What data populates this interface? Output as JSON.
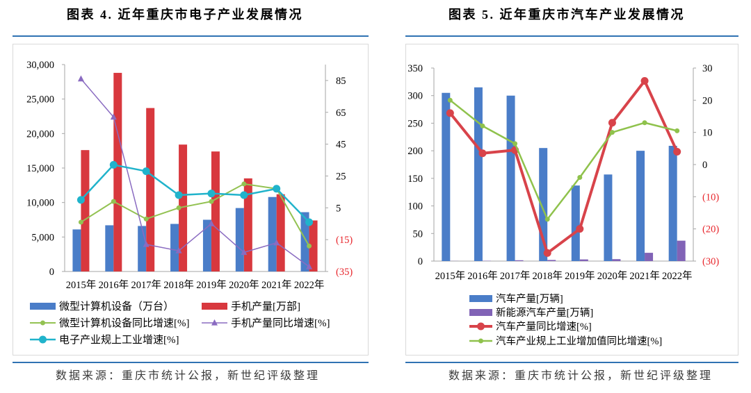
{
  "colors": {
    "rule": "#2f72b3",
    "axis": "#a6a6a6",
    "frame": "#d9d9d9"
  },
  "chart_data": [
    {
      "type": "bar+line",
      "title": "图表 4. 近年重庆市电子产业发展情况",
      "source": "数据来源：重庆市统计公报，新世纪评级整理",
      "categories": [
        "2015年",
        "2016年",
        "2017年",
        "2018年",
        "2019年",
        "2020年",
        "2021年",
        "2022年"
      ],
      "y_left": {
        "lim": [
          0,
          30000
        ],
        "ticks": [
          0,
          5000,
          10000,
          15000,
          20000,
          25000,
          30000
        ],
        "tick_labels": [
          "0",
          "5,000",
          "10,000",
          "15,000",
          "20,000",
          "25,000",
          "30,000"
        ]
      },
      "y_right": {
        "lim": [
          -35,
          95
        ],
        "ticks": [
          -35,
          -15,
          5,
          25,
          45,
          65,
          85
        ],
        "tick_labels": [
          "(35)",
          "(15)",
          "5",
          "25",
          "45",
          "65",
          "85"
        ]
      },
      "negative_label_color": "#e8262c",
      "grid": false,
      "legend": "bottom",
      "series": [
        {
          "name": "微型计算机设备（万台）",
          "type": "bar",
          "axis": "left",
          "color": "#4a7dc8",
          "values": [
            6100,
            6700,
            6600,
            6900,
            7500,
            9200,
            10800,
            8600
          ]
        },
        {
          "name": "手机产量[万部]",
          "type": "bar",
          "axis": "left",
          "color": "#d8383e",
          "values": [
            17600,
            28800,
            23700,
            18400,
            17400,
            13500,
            11200,
            7400
          ]
        },
        {
          "name": "微型计算机设备同比增速[%]",
          "type": "line",
          "axis": "right",
          "marker": "circle",
          "color": "#93c252",
          "values": [
            -4,
            9,
            -2,
            5,
            9,
            20,
            17,
            -19
          ]
        },
        {
          "name": "手机产量同比增速[%]",
          "type": "line",
          "axis": "right",
          "marker": "triangle",
          "color": "#8a6bc1",
          "values": [
            86,
            62,
            -18,
            -22,
            -5,
            -23,
            -17,
            -32
          ]
        },
        {
          "name": "电子产业规上工业增速[%]",
          "type": "line",
          "axis": "right",
          "marker": "circle",
          "color": "#20b3cb",
          "values": [
            10,
            32,
            28,
            13,
            14,
            13,
            17,
            -4
          ]
        }
      ]
    },
    {
      "type": "bar+line",
      "title": "图表 5. 近年重庆市汽车产业发展情况",
      "source": "数据来源：重庆市统计公报，新世纪评级整理",
      "categories": [
        "2015年",
        "2016年",
        "2017年",
        "2018年",
        "2019年",
        "2020年",
        "2021年",
        "2022年"
      ],
      "y_left": {
        "lim": [
          0,
          350
        ],
        "ticks": [
          0,
          50,
          100,
          150,
          200,
          250,
          300,
          350
        ],
        "tick_labels": [
          "0",
          "50",
          "100",
          "150",
          "200",
          "250",
          "300",
          "350"
        ]
      },
      "y_right": {
        "lim": [
          -30,
          30
        ],
        "ticks": [
          -30,
          -20,
          -10,
          0,
          10,
          20,
          30
        ],
        "tick_labels": [
          "(30)",
          "(20)",
          "(10)",
          "0",
          "10",
          "20",
          "30"
        ]
      },
      "negative_label_color": "#e8262c",
      "grid": false,
      "legend": "bottom",
      "series": [
        {
          "name": "汽车产量[万辆]",
          "type": "bar",
          "axis": "left",
          "color": "#4a7dc8",
          "values": [
            305,
            315,
            300,
            205,
            137,
            157,
            200,
            209
          ]
        },
        {
          "name": "新能源汽车产量[万辆]",
          "type": "bar",
          "axis": "left",
          "color": "#8163b6",
          "values": [
            0.2,
            0.5,
            1.5,
            2,
            3,
            3.5,
            15,
            37
          ]
        },
        {
          "name": "汽车产量同比增速[%]",
          "type": "line",
          "axis": "right",
          "marker": "circle",
          "color": "#d8434a",
          "values": [
            16,
            3.5,
            4.5,
            -27.5,
            -20,
            13,
            26,
            4
          ]
        },
        {
          "name": "汽车产业规上工业增加值同比增速[%]",
          "type": "line",
          "axis": "right",
          "marker": "circle",
          "color": "#8fc24c",
          "values": [
            20,
            12,
            6.5,
            -17,
            -4,
            10,
            13,
            10.5
          ]
        }
      ]
    }
  ]
}
